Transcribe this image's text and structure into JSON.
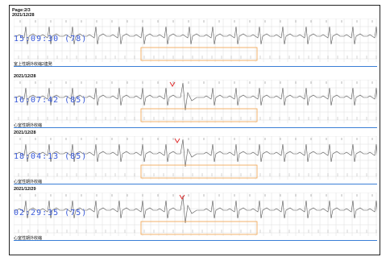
{
  "report": {
    "page_label": "Page:2/3",
    "page_date": "2021/12/28"
  },
  "colors": {
    "grid": "#d6d6d6",
    "wave": "#555555",
    "time": "#3657d8",
    "highlight": "#f0a048",
    "divider": "#3b7fd6",
    "marker": "#e03030"
  },
  "strips": [
    {
      "date": "2021/12/28",
      "time": "15:09:30 (78)",
      "caption": "室上性期外收縮2連発",
      "marker": false
    },
    {
      "date": "2021/12/28",
      "time": "16:07:42 (85)",
      "caption": "心室性期外收縮",
      "marker": true
    },
    {
      "date": "2021/12/28",
      "time": "18:04:13 (85)",
      "caption": "心室性期外收縮",
      "marker": true
    },
    {
      "date": "2021/12/29",
      "time": "02:29:35 (75)",
      "caption": "心室性期外收縮",
      "marker": true
    }
  ]
}
